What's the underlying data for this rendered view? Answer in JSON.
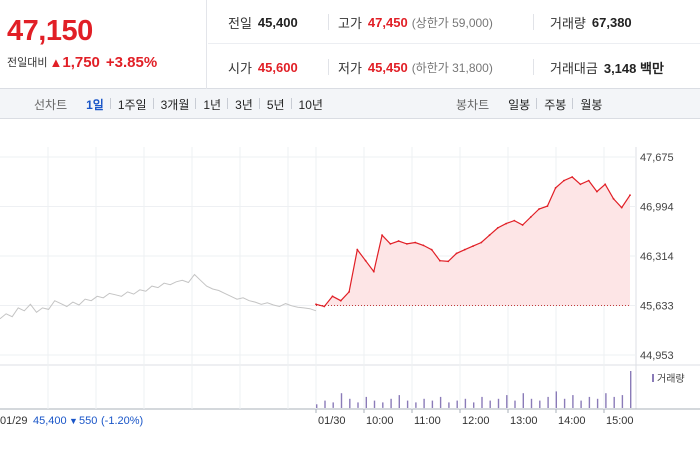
{
  "quote": {
    "price": "47,150",
    "change_label": "전일대비",
    "change_arrow": "▲",
    "change_value": "1,750",
    "change_pct": "+3.85%"
  },
  "info": {
    "prev_close_label": "전일",
    "prev_close": "45,400",
    "high_label": "고가",
    "high": "47,450",
    "upper_limit": "(상한가 59,000)",
    "volume_label": "거래량",
    "volume": "67,380",
    "open_label": "시가",
    "open": "45,600",
    "low_label": "저가",
    "low": "45,450",
    "lower_limit": "(하한가 31,800)",
    "amount_label": "거래대금",
    "amount": "3,148 백만"
  },
  "tabs": {
    "line_label": "선차트",
    "line_items": [
      "1일",
      "1주일",
      "3개월",
      "1년",
      "3년",
      "5년",
      "10년"
    ],
    "line_active": "1일",
    "candle_label": "봉차트",
    "candle_items": [
      "일봉",
      "주봉",
      "월봉"
    ]
  },
  "colors": {
    "up": "#e11f26",
    "down": "#1a56c8",
    "prev_line": "#c4c4c4",
    "fill": "#fde5e6",
    "volume": "#8a7bb8"
  },
  "chart_data": {
    "type": "line",
    "y_ticks": [
      "47,675",
      "46,994",
      "46,314",
      "45,633",
      "44,953"
    ],
    "ylim": [
      44953,
      47675
    ],
    "x_ticks": [
      "01/30",
      "10:00",
      "11:00",
      "12:00",
      "13:00",
      "14:00",
      "15:00"
    ],
    "base_price": 45633,
    "prev_day": {
      "date": "01/29",
      "close": "45,400",
      "change_arrow": "▼",
      "change": "550",
      "change_pct": "(-1.20%)",
      "values": [
        45450,
        45520,
        45480,
        45600,
        45560,
        45650,
        45540,
        45600,
        45580,
        45700,
        45660,
        45620,
        45680,
        45640,
        45720,
        45700,
        45760,
        45740,
        45800,
        45780,
        45760,
        45820,
        45790,
        45850,
        45830,
        45900,
        45880,
        45940,
        45920,
        45960,
        45980,
        45950,
        46060,
        45980,
        45900,
        45860,
        45840,
        45800,
        45760,
        45720,
        45740,
        45700,
        45680,
        45650,
        45670,
        45640,
        45620,
        45660,
        45630,
        45610,
        45600,
        45590,
        45560
      ]
    },
    "series": [
      {
        "name": "",
        "x": [
          "09:00",
          "09:10",
          "09:20",
          "09:30",
          "09:40",
          "09:50",
          "10:00",
          "10:10",
          "10:20",
          "10:30",
          "10:40",
          "10:50",
          "11:00",
          "11:10",
          "11:20",
          "11:30",
          "11:40",
          "11:50",
          "12:00",
          "12:10",
          "12:20",
          "12:30",
          "12:40",
          "12:50",
          "13:00",
          "13:10",
          "13:20",
          "13:30",
          "13:40",
          "13:50",
          "14:00",
          "14:10",
          "14:20",
          "14:30",
          "14:40",
          "14:50",
          "15:00",
          "15:10",
          "15:20"
        ],
        "values": [
          45650,
          45620,
          45760,
          45700,
          45820,
          46400,
          46250,
          46100,
          46600,
          46480,
          46520,
          46480,
          46500,
          46460,
          46400,
          46250,
          46240,
          46350,
          46400,
          46450,
          46500,
          46600,
          46700,
          46760,
          46800,
          46740,
          46850,
          46960,
          47000,
          47250,
          47350,
          47400,
          47300,
          47350,
          47200,
          47300,
          47100,
          46980,
          47150
        ]
      }
    ],
    "volume_label": "거래량",
    "volume": [
      2,
      4,
      3,
      8,
      5,
      3,
      6,
      4,
      3,
      5,
      7,
      4,
      3,
      5,
      4,
      6,
      3,
      4,
      5,
      3,
      6,
      4,
      5,
      7,
      4,
      8,
      5,
      4,
      6,
      9,
      5,
      7,
      4,
      6,
      5,
      8,
      6,
      7,
      20
    ]
  }
}
